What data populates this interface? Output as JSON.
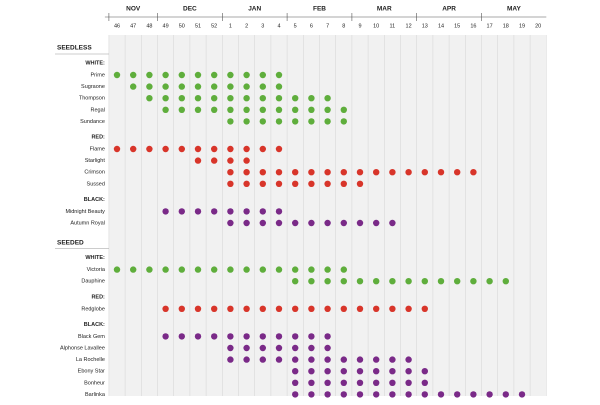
{
  "chart_data": {
    "type": "dot-grid",
    "months": [
      "NOV",
      "DEC",
      "JAN",
      "FEB",
      "MAR",
      "APR",
      "MAY"
    ],
    "weeks": [
      46,
      47,
      48,
      49,
      50,
      51,
      52,
      1,
      2,
      3,
      4,
      5,
      6,
      7,
      8,
      9,
      10,
      11,
      12,
      13,
      14,
      15,
      16,
      17,
      18,
      19,
      20
    ],
    "groups": [
      {
        "title": "SEEDLESS",
        "sections": [
          {
            "title": "WHITE:",
            "color": "#5fae3c",
            "rows": [
              {
                "name": "Prime",
                "weeks": [
                  46,
                  47,
                  48,
                  49,
                  50,
                  51,
                  52,
                  1,
                  2,
                  3,
                  4
                ]
              },
              {
                "name": "Sugraone",
                "weeks": [
                  47,
                  48,
                  49,
                  50,
                  51,
                  52,
                  1,
                  2,
                  3,
                  4
                ]
              },
              {
                "name": "Thompson",
                "weeks": [
                  48,
                  49,
                  50,
                  51,
                  52,
                  1,
                  2,
                  3,
                  4,
                  5,
                  6,
                  7
                ]
              },
              {
                "name": "Regal",
                "weeks": [
                  49,
                  50,
                  51,
                  52,
                  1,
                  2,
                  3,
                  4,
                  5,
                  6,
                  7,
                  8
                ]
              },
              {
                "name": "Sundance",
                "weeks": [
                  1,
                  2,
                  3,
                  4,
                  5,
                  6,
                  7,
                  8
                ]
              }
            ]
          },
          {
            "title": "RED:",
            "color": "#d8352a",
            "rows": [
              {
                "name": "Flame",
                "weeks": [
                  46,
                  47,
                  48,
                  49,
                  50,
                  51,
                  52,
                  1,
                  2,
                  3,
                  4
                ]
              },
              {
                "name": "Starlight",
                "weeks": [
                  51,
                  52,
                  1,
                  2
                ]
              },
              {
                "name": "Crimson",
                "weeks": [
                  1,
                  2,
                  3,
                  4,
                  5,
                  6,
                  7,
                  8,
                  9,
                  10,
                  11,
                  12,
                  13,
                  14,
                  15,
                  16
                ]
              },
              {
                "name": "Sussed",
                "weeks": [
                  1,
                  2,
                  3,
                  4,
                  5,
                  6,
                  7,
                  8,
                  9
                ]
              }
            ]
          },
          {
            "title": "BLACK:",
            "color": "#7a2a88",
            "rows": [
              {
                "name": "Midnight Beauty",
                "weeks": [
                  49,
                  50,
                  51,
                  52,
                  1,
                  2,
                  3,
                  4
                ]
              },
              {
                "name": "Autumn Royal",
                "weeks": [
                  1,
                  2,
                  3,
                  4,
                  5,
                  6,
                  7,
                  8,
                  9,
                  10,
                  11
                ]
              }
            ]
          }
        ]
      },
      {
        "title": "SEEDED",
        "sections": [
          {
            "title": "WHITE:",
            "color": "#5fae3c",
            "rows": [
              {
                "name": "Victoria",
                "weeks": [
                  46,
                  47,
                  48,
                  49,
                  50,
                  51,
                  52,
                  1,
                  2,
                  3,
                  4,
                  5,
                  6,
                  7,
                  8
                ]
              },
              {
                "name": "Dauphine",
                "weeks": [
                  5,
                  6,
                  7,
                  8,
                  9,
                  10,
                  11,
                  12,
                  13,
                  14,
                  15,
                  16,
                  17,
                  18
                ]
              }
            ]
          },
          {
            "title": "RED:",
            "color": "#d8352a",
            "rows": [
              {
                "name": "Redglobe",
                "weeks": [
                  49,
                  50,
                  51,
                  52,
                  1,
                  2,
                  3,
                  4,
                  5,
                  6,
                  7,
                  8,
                  9,
                  10,
                  11,
                  12,
                  13
                ]
              }
            ]
          },
          {
            "title": "BLACK:",
            "color": "#7a2a88",
            "rows": [
              {
                "name": "Black Gem",
                "weeks": [
                  49,
                  50,
                  51,
                  52,
                  1,
                  2,
                  3,
                  4,
                  5,
                  6,
                  7
                ]
              },
              {
                "name": "Alphonse Lavallee",
                "weeks": [
                  1,
                  2,
                  3,
                  4,
                  5,
                  6,
                  7
                ]
              },
              {
                "name": "La Rochelle",
                "weeks": [
                  1,
                  2,
                  3,
                  4,
                  5,
                  6,
                  7,
                  8,
                  9,
                  10,
                  11,
                  12
                ]
              },
              {
                "name": "Ebony Star",
                "weeks": [
                  5,
                  6,
                  7,
                  8,
                  9,
                  10,
                  11,
                  12,
                  13
                ]
              },
              {
                "name": "Bonheur",
                "weeks": [
                  5,
                  6,
                  7,
                  8,
                  9,
                  10,
                  11,
                  12,
                  13
                ]
              },
              {
                "name": "Barlinka",
                "weeks": [
                  5,
                  6,
                  7,
                  8,
                  9,
                  10,
                  11,
                  12,
                  13,
                  14,
                  15,
                  16,
                  17,
                  18,
                  19
                ]
              }
            ]
          }
        ]
      }
    ]
  }
}
